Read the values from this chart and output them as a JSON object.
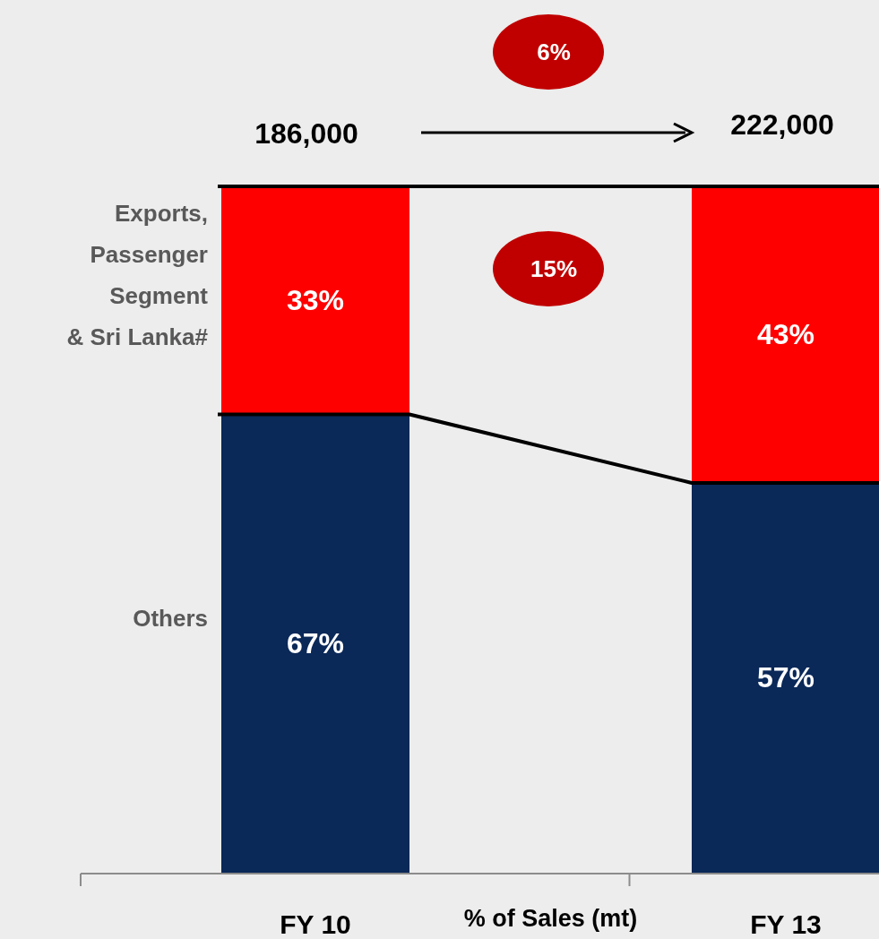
{
  "chart_data": {
    "type": "bar",
    "stacked": true,
    "xlabel": "% of Sales (mt)",
    "categories": [
      "FY 10",
      "FY 13"
    ],
    "series": [
      {
        "name": "Others",
        "color": "#0a2858",
        "values": [
          67,
          57
        ],
        "value_labels": [
          "67%",
          "57%"
        ]
      },
      {
        "name": "Exports, Passenger Segment & Sri Lanka#",
        "color": "#ff0000",
        "values": [
          33,
          43
        ],
        "value_labels": [
          "33%",
          "43%"
        ]
      }
    ],
    "annotations": [
      "186,000",
      "222,000",
      "6%",
      "15%"
    ]
  }
}
